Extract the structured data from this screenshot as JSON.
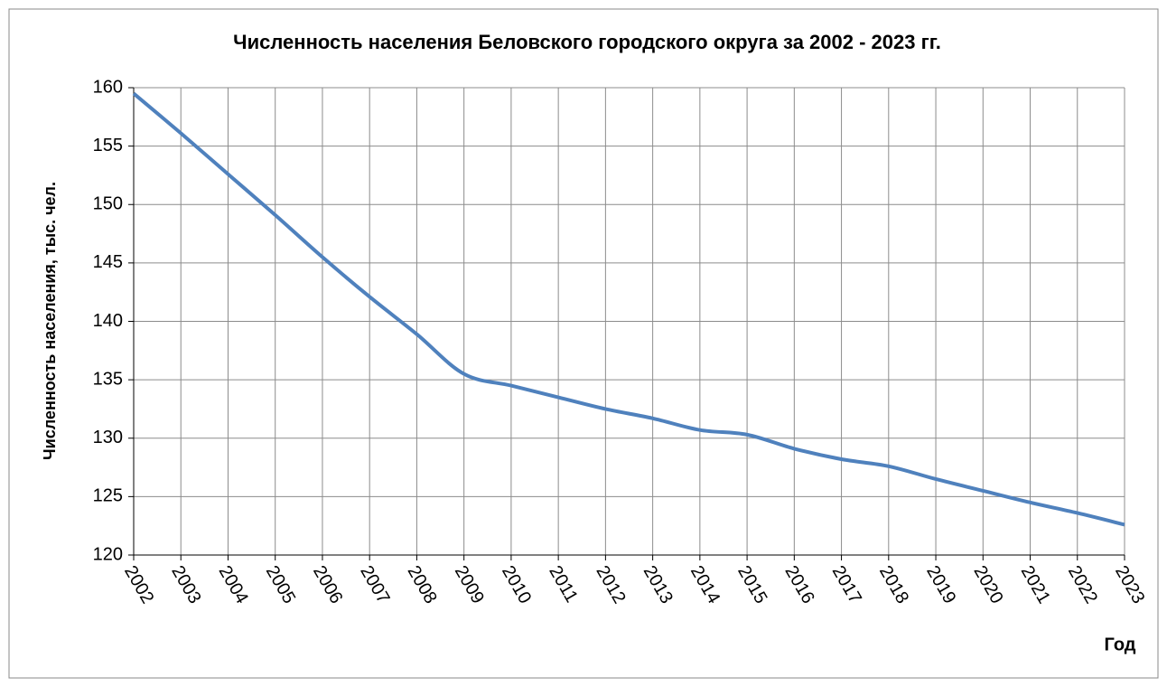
{
  "chart_data": {
    "type": "line",
    "title": "Численность населения Беловского городского округа за 2002 - 2023 гг.",
    "y_label": "Численность населения, тыс. чел.",
    "x_label": "Год",
    "categories": [
      "2002",
      "2003",
      "2004",
      "2005",
      "2006",
      "2007",
      "2008",
      "2009",
      "2010",
      "2011",
      "2012",
      "2013",
      "2014",
      "2015",
      "2016",
      "2017",
      "2018",
      "2019",
      "2020",
      "2021",
      "2022",
      "2023"
    ],
    "series": [
      {
        "color": "#4f81bd",
        "values": [
          159.5,
          156.1,
          152.6,
          149.1,
          145.5,
          142.1,
          138.9,
          135.5,
          134.5,
          133.5,
          132.5,
          131.7,
          130.7,
          130.3,
          129.1,
          128.2,
          127.6,
          126.5,
          125.5,
          124.5,
          123.6,
          122.6
        ]
      }
    ],
    "ylim": [
      120,
      160
    ],
    "yticks": [
      120,
      125,
      130,
      135,
      140,
      145,
      150,
      155,
      160
    ],
    "grid": true,
    "smooth": true
  }
}
